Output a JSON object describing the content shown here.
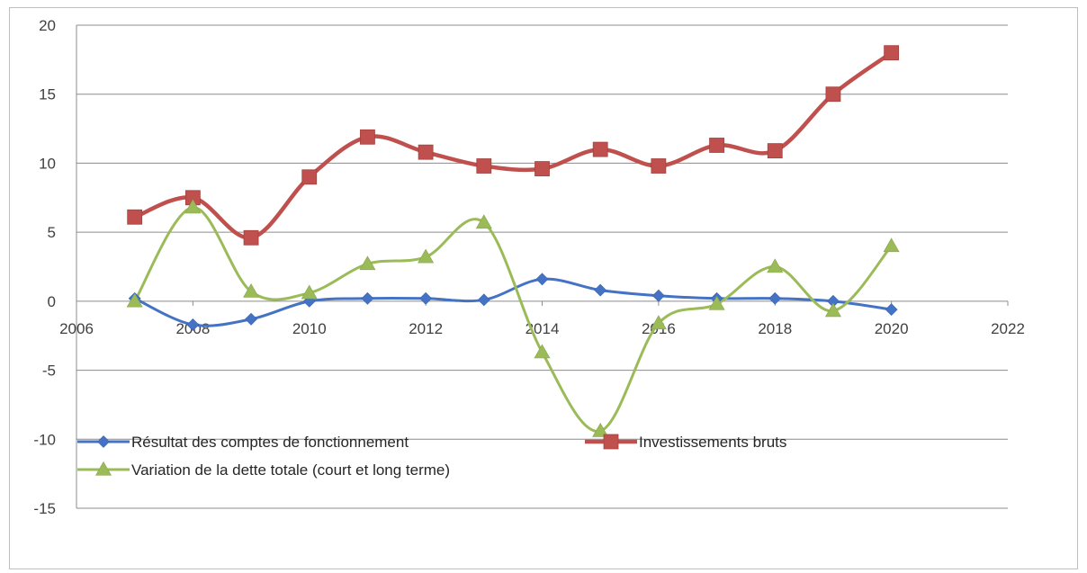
{
  "chart_data": {
    "type": "line",
    "smooth": true,
    "title": "",
    "xlabel": "",
    "ylabel": "",
    "xlim": [
      2006,
      2022
    ],
    "ylim": [
      -15,
      20
    ],
    "x_ticks": [
      2006,
      2008,
      2010,
      2012,
      2014,
      2016,
      2018,
      2020,
      2022
    ],
    "y_ticks": [
      20,
      15,
      10,
      5,
      0,
      -5,
      -10,
      -15
    ],
    "grid": "horizontal",
    "legend_position": "bottom-left inside plot",
    "series": [
      {
        "name": "Résultat des comptes de fonctionnement",
        "color": "#4472c4",
        "marker": "diamond",
        "x": [
          2007,
          2008,
          2009,
          2010,
          2011,
          2012,
          2013,
          2014,
          2015,
          2016,
          2017,
          2018,
          2019,
          2020
        ],
        "y": [
          0.2,
          -1.7,
          -1.3,
          0.0,
          0.2,
          0.2,
          0.1,
          1.6,
          0.8,
          0.4,
          0.2,
          0.2,
          0.0,
          -0.6
        ]
      },
      {
        "name": "Investissements bruts",
        "color": "#c0504d",
        "marker": "square",
        "x": [
          2007,
          2008,
          2009,
          2010,
          2011,
          2012,
          2013,
          2014,
          2015,
          2016,
          2017,
          2018,
          2019,
          2020
        ],
        "y": [
          6.1,
          7.5,
          4.6,
          9.0,
          11.9,
          10.8,
          9.8,
          9.6,
          11.0,
          9.8,
          11.3,
          10.9,
          15.0,
          18.0
        ]
      },
      {
        "name": "Variation de la dette totale (court et long terme)",
        "color": "#9bbb59",
        "marker": "triangle",
        "x": [
          2007,
          2008,
          2009,
          2010,
          2011,
          2012,
          2013,
          2014,
          2015,
          2016,
          2017,
          2018,
          2019,
          2020
        ],
        "y": [
          0.0,
          6.8,
          0.7,
          0.6,
          2.7,
          3.2,
          5.7,
          -3.7,
          -9.4,
          -1.6,
          -0.2,
          2.5,
          -0.7,
          4.0
        ]
      }
    ]
  }
}
